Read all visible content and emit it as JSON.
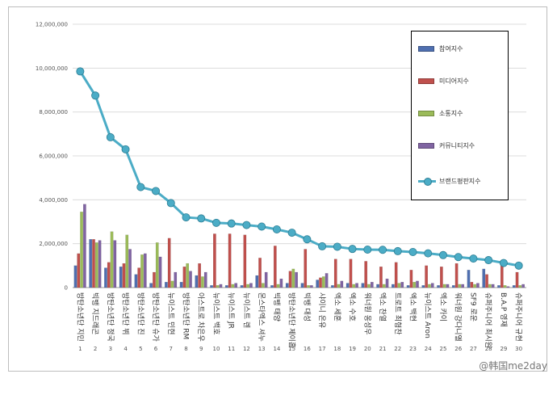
{
  "chart_data": {
    "type": "bar",
    "title": "",
    "xlabel": "",
    "ylabel": "",
    "ylim": [
      0,
      12000000
    ],
    "yticks": [
      0,
      2000000,
      4000000,
      6000000,
      8000000,
      10000000,
      12000000
    ],
    "ytick_labels": [
      "0",
      "2,000,000",
      "4,000,000",
      "6,000,000",
      "8,000,000",
      "10,000,000",
      "12,000,000"
    ],
    "grid": true,
    "legend_position": "top-right",
    "ranks": [
      "1",
      "2",
      "3",
      "4",
      "5",
      "6",
      "7",
      "8",
      "9",
      "10",
      "11",
      "12",
      "13",
      "14",
      "15",
      "16",
      "17",
      "18",
      "19",
      "20",
      "21",
      "22",
      "23",
      "24",
      "25",
      "26",
      "27",
      "28",
      "29",
      "30"
    ],
    "categories": [
      "방탄소년단 지민",
      "빅뱅 지드래곤",
      "방탄소년단 정국",
      "방탄소년단 뷔",
      "방탄소년단 진",
      "방탄소년단 슈가",
      "뉴이스트 민현",
      "방탄소년단 RM",
      "아스트로 차은우",
      "뉴이스트 백호",
      "뉴이스트 JR",
      "뉴이스트 렌",
      "몬스타엑스 셔누",
      "빅뱅 태양",
      "방탄소년단 제이홉",
      "빅뱅 대성",
      "샤이니 온유",
      "엑소 세훈",
      "엑소 수호",
      "워너원 옹성우",
      "엑소 찬열",
      "트로트 최형찬",
      "엑소 백현",
      "뉴이스트 Aron",
      "엑소 카이",
      "워너원 강다니엘",
      "SF9 로운",
      "슈퍼주니어 최시원",
      "B.A.P 영재",
      "슈퍼주니어 규현"
    ],
    "series": [
      {
        "name": "참여지수",
        "kind": "bar",
        "color": "#4f6fb0",
        "values": [
          1000000,
          2200000,
          900000,
          950000,
          600000,
          200000,
          250000,
          250000,
          550000,
          100000,
          100000,
          100000,
          550000,
          100000,
          200000,
          200000,
          350000,
          100000,
          200000,
          200000,
          150000,
          150000,
          100000,
          100000,
          100000,
          100000,
          800000,
          850000,
          100000,
          100000
        ]
      },
      {
        "name": "미디어지수",
        "kind": "bar",
        "color": "#c0504d",
        "values": [
          1550000,
          2200000,
          1150000,
          1100000,
          900000,
          700000,
          2250000,
          950000,
          1100000,
          2450000,
          2450000,
          2400000,
          1350000,
          1900000,
          750000,
          1750000,
          450000,
          1300000,
          1300000,
          1200000,
          950000,
          1150000,
          800000,
          1000000,
          950000,
          1100000,
          250000,
          600000,
          1050000,
          700000
        ]
      },
      {
        "name": "소통지수",
        "kind": "bar",
        "color": "#9bbb59",
        "values": [
          3450000,
          2050000,
          2550000,
          2400000,
          1500000,
          2050000,
          300000,
          1100000,
          500000,
          100000,
          150000,
          150000,
          200000,
          150000,
          850000,
          100000,
          500000,
          150000,
          150000,
          150000,
          150000,
          200000,
          250000,
          150000,
          150000,
          150000,
          150000,
          150000,
          100000,
          100000
        ]
      },
      {
        "name": "커뮤니티지수",
        "kind": "bar",
        "color": "#8064a2",
        "values": [
          3800000,
          2150000,
          2150000,
          1750000,
          1550000,
          1400000,
          700000,
          750000,
          700000,
          150000,
          200000,
          200000,
          700000,
          400000,
          700000,
          100000,
          650000,
          300000,
          200000,
          250000,
          400000,
          250000,
          300000,
          200000,
          150000,
          150000,
          200000,
          150000,
          50000,
          150000
        ]
      },
      {
        "name": "브랜드평판지수",
        "kind": "line",
        "color": "#4bacc6",
        "values": [
          9850000,
          8750000,
          6850000,
          6300000,
          4580000,
          4400000,
          3850000,
          3200000,
          3150000,
          2950000,
          2920000,
          2850000,
          2780000,
          2650000,
          2500000,
          2200000,
          1880000,
          1860000,
          1760000,
          1730000,
          1720000,
          1660000,
          1620000,
          1560000,
          1480000,
          1390000,
          1320000,
          1250000,
          1120000,
          1000000
        ]
      }
    ]
  },
  "watermark": "@韩国me2day"
}
